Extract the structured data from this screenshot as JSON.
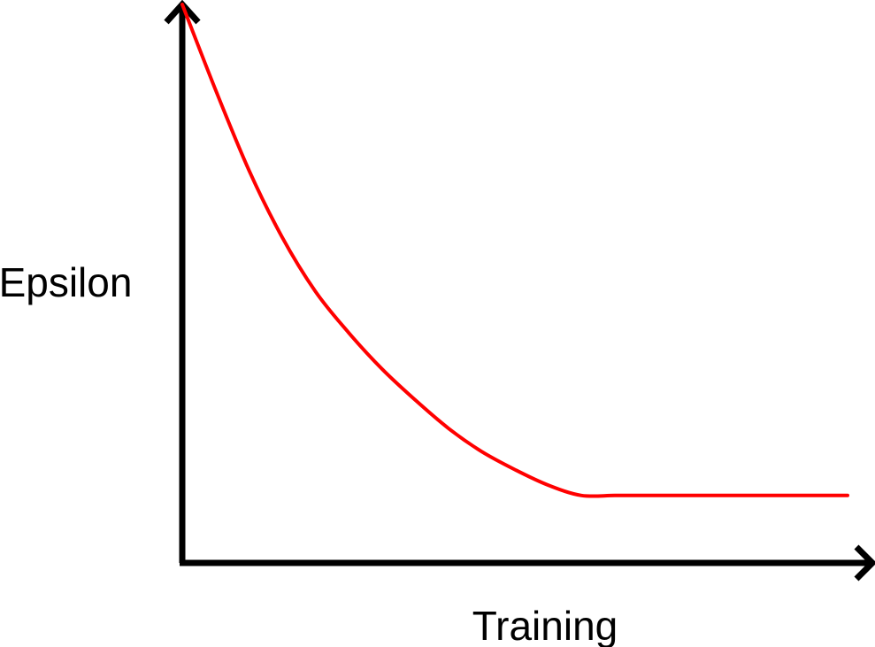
{
  "chart_data": {
    "type": "line",
    "xlabel": "Training",
    "ylabel": "Epsilon",
    "grid": false,
    "x": [
      0,
      0.05,
      0.1,
      0.15,
      0.2,
      0.25,
      0.3,
      0.35,
      0.4,
      0.45,
      0.5,
      0.55,
      0.6,
      0.65,
      0.7,
      0.75,
      0.8,
      0.85,
      0.9,
      0.95,
      1.0
    ],
    "series": [
      {
        "values": [
          1.0,
          0.835,
          0.68,
          0.55,
          0.445,
          0.365,
          0.295,
          0.235,
          0.18,
          0.135,
          0.1,
          0.07,
          0.05,
          0.05,
          0.05,
          0.05,
          0.05,
          0.05,
          0.05,
          0.05,
          0.05
        ],
        "color": "#ff0000"
      }
    ],
    "xlim": [
      0,
      1
    ],
    "ylim": [
      0,
      1
    ],
    "axis_color": "#000000"
  }
}
